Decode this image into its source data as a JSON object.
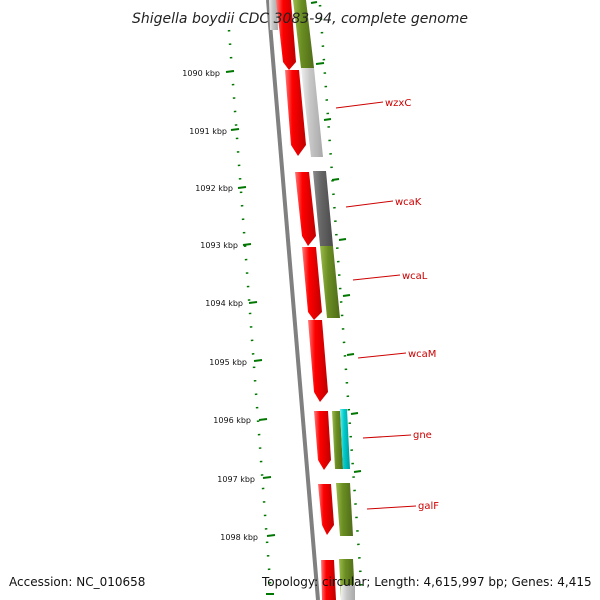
{
  "title": "Shigella boydii CDC 3083-94, complete genome",
  "footer": {
    "accession": "Accession: NC_010658",
    "topology": "Topology: circular; Length: 4,615,997 bp; Genes: 4,415"
  },
  "kbp_labels": [
    "1090 kbp",
    "1091 kbp",
    "1092 kbp",
    "1093 kbp",
    "1094 kbp",
    "1095 kbp",
    "1096 kbp",
    "1097 kbp",
    "1098 kbp"
  ],
  "gene_labels": [
    "wzxC",
    "wcaK",
    "wcaL",
    "wcaM",
    "gne",
    "galF"
  ],
  "colors": {
    "gene_red": "#ff0000",
    "olive": "#6b8e23",
    "light_gray": "#c8c8c8",
    "dark_gray": "#666666",
    "cyan": "#00cccc",
    "tick_green": "#007700",
    "label_red": "#cc0000"
  }
}
